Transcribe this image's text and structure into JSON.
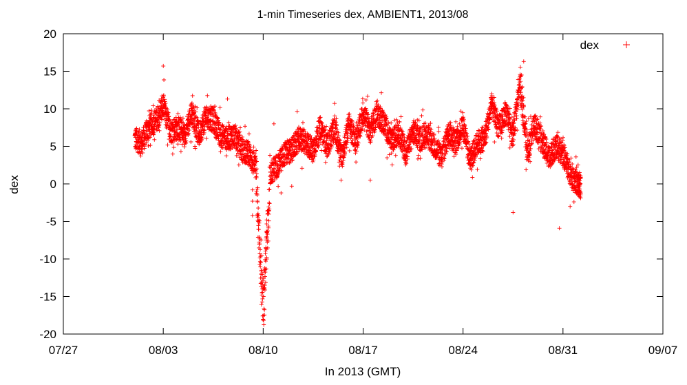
{
  "chart_data": {
    "type": "scatter",
    "title": "1-min Timeseries dex, AMBIENT1, 2013/08",
    "xlabel": "In 2013 (GMT)",
    "ylabel": "dex",
    "xlim": [
      "2013-07-27",
      "2013-09-07"
    ],
    "ylim": [
      -20,
      20
    ],
    "x_ticks": [
      "07/27",
      "08/03",
      "08/10",
      "08/17",
      "08/24",
      "08/31",
      "09/07"
    ],
    "y_ticks": [
      "-20",
      "-15",
      "-10",
      "-5",
      "0",
      "5",
      "10",
      "15",
      "20"
    ],
    "grid": false,
    "legend_position": "top-right",
    "series": [
      {
        "name": "dex",
        "color": "#ff0000",
        "marker": "plus",
        "trend": [
          [
            "2013-08-01",
            6.0
          ],
          [
            "2013-08-01 12:00",
            5.5
          ],
          [
            "2013-08-02",
            7.5
          ],
          [
            "2013-08-02 12:00",
            8.5
          ],
          [
            "2013-08-03",
            10.5
          ],
          [
            "2013-08-03 12:00",
            7.0
          ],
          [
            "2013-08-04",
            7.5
          ],
          [
            "2013-08-04 12:00",
            6.5
          ],
          [
            "2013-08-05",
            9.5
          ],
          [
            "2013-08-05 12:00",
            6.5
          ],
          [
            "2013-08-06",
            9.0
          ],
          [
            "2013-08-06 12:00",
            8.5
          ],
          [
            "2013-08-07",
            6.5
          ],
          [
            "2013-08-07 12:00",
            6.0
          ],
          [
            "2013-08-08",
            6.5
          ],
          [
            "2013-08-08 12:00",
            4.5
          ],
          [
            "2013-08-09",
            4.0
          ],
          [
            "2013-08-09 12:00",
            2.0
          ],
          [
            "2013-08-10",
            -17.0
          ],
          [
            "2013-08-10 12:00",
            1.5
          ],
          [
            "2013-08-11",
            2.5
          ],
          [
            "2013-08-11 12:00",
            4.0
          ],
          [
            "2013-08-12",
            4.5
          ],
          [
            "2013-08-12 12:00",
            6.0
          ],
          [
            "2013-08-13",
            5.5
          ],
          [
            "2013-08-13 12:00",
            4.5
          ],
          [
            "2013-08-14",
            7.5
          ],
          [
            "2013-08-14 12:00",
            5.0
          ],
          [
            "2013-08-15",
            7.5
          ],
          [
            "2013-08-15 12:00",
            3.5
          ],
          [
            "2013-08-16",
            8.0
          ],
          [
            "2013-08-16 12:00",
            5.5
          ],
          [
            "2013-08-17",
            9.5
          ],
          [
            "2013-08-17 12:00",
            7.0
          ],
          [
            "2013-08-18",
            9.5
          ],
          [
            "2013-08-18 12:00",
            8.0
          ],
          [
            "2013-08-19",
            5.5
          ],
          [
            "2013-08-19 12:00",
            7.0
          ],
          [
            "2013-08-20",
            4.0
          ],
          [
            "2013-08-20 12:00",
            7.0
          ],
          [
            "2013-08-21",
            6.0
          ],
          [
            "2013-08-21 12:00",
            6.5
          ],
          [
            "2013-08-22",
            5.0
          ],
          [
            "2013-08-22 12:00",
            3.5
          ],
          [
            "2013-08-23",
            7.0
          ],
          [
            "2013-08-23 12:00",
            5.5
          ],
          [
            "2013-08-24",
            8.0
          ],
          [
            "2013-08-24 12:00",
            3.0
          ],
          [
            "2013-08-25",
            5.5
          ],
          [
            "2013-08-25 12:00",
            6.0
          ],
          [
            "2013-08-26",
            10.5
          ],
          [
            "2013-08-26 12:00",
            7.5
          ],
          [
            "2013-08-27",
            9.5
          ],
          [
            "2013-08-27 12:00",
            6.5
          ],
          [
            "2013-08-28",
            13.5
          ],
          [
            "2013-08-28 12:00",
            4.0
          ],
          [
            "2013-08-29",
            8.0
          ],
          [
            "2013-08-29 12:00",
            6.0
          ],
          [
            "2013-08-30",
            3.5
          ],
          [
            "2013-08-30 12:00",
            5.0
          ],
          [
            "2013-08-31",
            4.0
          ],
          [
            "2013-08-31 12:00",
            1.5
          ],
          [
            "2013-09-01",
            0.0
          ],
          [
            "2013-09-01 06:00",
            -0.5
          ]
        ],
        "outliers": [
          [
            "2013-08-03",
            15.7
          ],
          [
            "2013-08-07 12:00",
            11.3
          ],
          [
            "2013-08-09 06:00",
            -0.8
          ],
          [
            "2013-08-09 06:00",
            -2.3
          ],
          [
            "2013-08-09 06:00",
            -4.2
          ],
          [
            "2013-08-10 06:00",
            -4.8
          ],
          [
            "2013-08-10 06:00",
            -9.8
          ],
          [
            "2013-08-10 18:00",
            8.0
          ],
          [
            "2013-08-11 06:00",
            -1.2
          ],
          [
            "2013-08-12",
            -0.3
          ],
          [
            "2013-08-17 12:00",
            0.5
          ],
          [
            "2013-08-27 12:00",
            -3.8
          ],
          [
            "2013-08-28 06:00",
            16.3
          ],
          [
            "2013-08-30 18:00",
            -5.9
          ],
          [
            "2013-08-31 12:00",
            -3.0
          ]
        ]
      }
    ]
  }
}
